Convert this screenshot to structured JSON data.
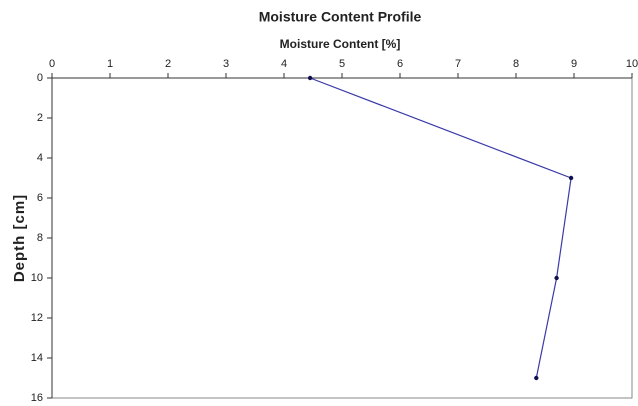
{
  "chart_data": {
    "type": "line",
    "title": "Moisture Content Profile",
    "x_label": "Moisture Content [%]",
    "y_label": "Depth [cm]",
    "x": [
      4.45,
      8.95,
      8.7,
      8.35
    ],
    "y": [
      0,
      5,
      10,
      15
    ],
    "color": "#3a3aa8",
    "marker_color": "#101050",
    "xlim": [
      0,
      10
    ],
    "xticks": [
      0,
      1,
      2,
      3,
      4,
      5,
      6,
      7,
      8,
      9,
      10
    ],
    "ylim": [
      0,
      16
    ],
    "yticks": [
      0,
      2,
      4,
      6,
      8,
      10,
      12,
      14,
      16
    ],
    "y_inverted": true,
    "x_axis_position": "top",
    "grid": false
  }
}
